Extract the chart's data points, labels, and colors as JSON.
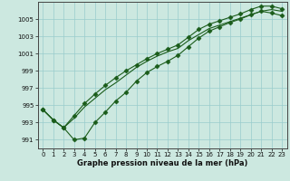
{
  "xlabel": "Graphe pression niveau de la mer (hPa)",
  "background_color": "#cce8e0",
  "plot_bg_color": "#cce8e0",
  "grid_color": "#99cccc",
  "line_color": "#1a5c1a",
  "x_values": [
    0,
    1,
    2,
    3,
    4,
    5,
    6,
    7,
    8,
    9,
    10,
    11,
    12,
    13,
    14,
    15,
    16,
    17,
    18,
    19,
    20,
    21,
    22,
    23
  ],
  "line_smooth": [
    994.5,
    993.3,
    992.4,
    993.5,
    994.8,
    995.8,
    996.8,
    997.6,
    998.5,
    999.4,
    1000.1,
    1000.7,
    1001.2,
    1001.6,
    1002.5,
    1003.2,
    1003.9,
    1004.3,
    1004.7,
    1005.1,
    1005.5,
    1005.9,
    1006.1,
    1005.9
  ],
  "line_high": [
    994.5,
    993.3,
    992.4,
    993.8,
    995.2,
    996.3,
    997.3,
    998.2,
    999.0,
    999.7,
    1000.4,
    1001.0,
    1001.5,
    1002.0,
    1002.9,
    1003.8,
    1004.4,
    1004.8,
    1005.2,
    1005.6,
    1006.1,
    1006.5,
    1006.5,
    1006.2
  ],
  "line_low": [
    994.5,
    993.3,
    992.4,
    991.0,
    991.2,
    993.0,
    994.2,
    995.5,
    996.5,
    997.8,
    998.8,
    999.5,
    1000.1,
    1000.8,
    1001.8,
    1002.8,
    1003.6,
    1004.1,
    1004.6,
    1005.0,
    1005.5,
    1005.9,
    1005.7,
    1005.4
  ],
  "ylim_min": 990.0,
  "ylim_max": 1007.0,
  "yticks": [
    991,
    993,
    995,
    997,
    999,
    1001,
    1003,
    1005
  ],
  "marker": "D",
  "marker_size": 2.5,
  "linewidth": 0.8
}
